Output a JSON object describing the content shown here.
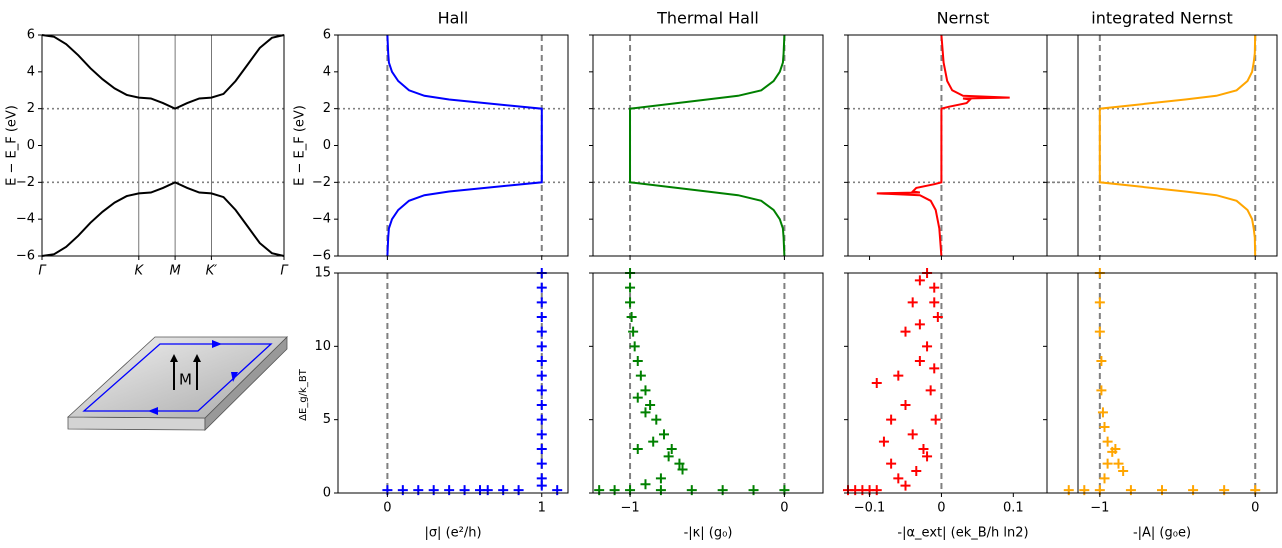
{
  "diagram": {
    "label": "M"
  },
  "chart_data": [
    {
      "type": "line",
      "ylabel": "E − E_F (eV)",
      "x": [
        0,
        0.05,
        0.1,
        0.15,
        0.2,
        0.25,
        0.3,
        0.35,
        0.4,
        0.45,
        0.5,
        0.55,
        0.6,
        0.65,
        0.7,
        0.75,
        0.8,
        0.85,
        0.9,
        0.95,
        1
      ],
      "series": [
        {
          "color": "#000000",
          "values": [
            6,
            5.9,
            5.5,
            4.9,
            4.2,
            3.6,
            3.1,
            2.75,
            2.6,
            2.55,
            2.3,
            2.0,
            2.3,
            2.55,
            2.6,
            2.8,
            3.5,
            4.4,
            5.3,
            5.85,
            6
          ]
        },
        {
          "color": "#000000",
          "values": [
            -6,
            -5.9,
            -5.5,
            -4.9,
            -4.2,
            -3.6,
            -3.1,
            -2.75,
            -2.6,
            -2.55,
            -2.3,
            -2.0,
            -2.3,
            -2.55,
            -2.6,
            -2.8,
            -3.5,
            -4.4,
            -5.3,
            -5.85,
            -6
          ]
        }
      ],
      "xlim": [
        0,
        1
      ],
      "xticks": [
        {
          "value": 0,
          "label": "Γ"
        },
        {
          "value": 0.4,
          "label": "K"
        },
        {
          "value": 0.55,
          "label": "M"
        },
        {
          "value": 0.7,
          "label": "K′"
        },
        {
          "value": 1,
          "label": "Γ"
        }
      ],
      "xgrid": true,
      "ylim": [
        -6,
        6
      ],
      "yticks": [
        {
          "value": -6,
          "label": "−6"
        },
        {
          "value": -4,
          "label": "−4"
        },
        {
          "value": -2,
          "label": "−2"
        },
        0,
        2,
        4,
        6
      ],
      "hlines": [
        2,
        -2
      ]
    },
    {
      "type": "line",
      "title": "Hall",
      "ylabel": "E − E_F (eV)",
      "y": [
        -6,
        -5,
        -4.5,
        -4,
        -3.5,
        -3,
        -2.7,
        -2.5,
        -2,
        2,
        2.5,
        2.7,
        3,
        3.5,
        4,
        4.5,
        5,
        6
      ],
      "series": [
        {
          "color": "#0000ff",
          "values": [
            0,
            0.005,
            0.01,
            0.03,
            0.07,
            0.14,
            0.24,
            0.4,
            1,
            1,
            0.4,
            0.24,
            0.14,
            0.07,
            0.03,
            0.01,
            0.005,
            0
          ]
        }
      ],
      "xlim": [
        -0.32,
        1.17
      ],
      "ylim": [
        -6,
        6
      ],
      "yticks": [
        {
          "value": -6,
          "label": "−6"
        },
        {
          "value": -4,
          "label": "−4"
        },
        {
          "value": -2,
          "label": "−2"
        },
        0,
        2,
        4,
        6
      ],
      "hlines": [
        2,
        -2
      ],
      "vlines": [
        0,
        1
      ]
    },
    {
      "type": "line",
      "title": "Thermal Hall",
      "y": [
        -6,
        -5,
        -4.5,
        -4,
        -3.5,
        -3,
        -2.7,
        -2.5,
        -2,
        2,
        2.5,
        2.7,
        3,
        3.5,
        4,
        4.5,
        5,
        6
      ],
      "series": [
        {
          "color": "#008000",
          "values": [
            0,
            -0.005,
            -0.01,
            -0.03,
            -0.07,
            -0.15,
            -0.3,
            -0.5,
            -1,
            -1,
            -0.5,
            -0.3,
            -0.15,
            -0.07,
            -0.03,
            -0.01,
            -0.005,
            0
          ]
        }
      ],
      "xlim": [
        -1.24,
        0.25
      ],
      "ylim": [
        -6,
        6
      ],
      "hlines": [
        2,
        -2
      ],
      "vlines": [
        -1,
        0
      ]
    },
    {
      "type": "line",
      "title": "Nernst",
      "y": [
        -6,
        -4.5,
        -3.5,
        -3,
        -2.7,
        -2.6,
        -2.55,
        -2.5,
        -2.3,
        -2.1,
        -2,
        2,
        2.1,
        2.3,
        2.5,
        2.55,
        2.6,
        2.7,
        3,
        3.5,
        4.5,
        6
      ],
      "series": [
        {
          "color": "#ff0000",
          "values": [
            0,
            -0.003,
            -0.008,
            -0.015,
            -0.03,
            -0.09,
            -0.03,
            -0.04,
            -0.035,
            -0.01,
            0,
            0,
            0.01,
            0.035,
            0.04,
            0.03,
            0.095,
            0.03,
            0.015,
            0.008,
            0.003,
            0
          ]
        }
      ],
      "xlim": [
        -0.13,
        0.19
      ],
      "ylim": [
        -6,
        6
      ],
      "hlines": [
        2,
        -2
      ],
      "vlines": [
        0
      ]
    },
    {
      "type": "line",
      "title": "integrated Nernst",
      "y": [
        -6,
        -5,
        -4.5,
        -4,
        -3.5,
        -3,
        -2.7,
        -2.5,
        -2,
        2,
        2.5,
        2.7,
        3,
        3.5,
        4,
        4.5,
        5,
        6
      ],
      "series": [
        {
          "color": "#ffa500",
          "values": [
            0,
            -0.003,
            -0.01,
            -0.02,
            -0.05,
            -0.12,
            -0.25,
            -0.45,
            -1,
            -1,
            -0.45,
            -0.25,
            -0.12,
            -0.05,
            -0.02,
            -0.01,
            -0.003,
            0
          ]
        }
      ],
      "xlim": [
        -1.34,
        0.14
      ],
      "ylim": [
        -6,
        6
      ],
      "hlines": [
        2,
        -2
      ],
      "vlines": [
        -1,
        0
      ]
    },
    {
      "type": "scatter",
      "xlabel": "|σ| (e²/h)",
      "ylabel": "ΔE_g/k_BT",
      "color": "#0000ff",
      "x": [
        0,
        0.1,
        0.2,
        0.3,
        0.4,
        0.5,
        0.6,
        0.65,
        0.75,
        0.85,
        1.1,
        1,
        1,
        1,
        1,
        1,
        1,
        1,
        1,
        1,
        1,
        1,
        1,
        1,
        1,
        1,
        1
      ],
      "y": [
        0.2,
        0.2,
        0.2,
        0.2,
        0.2,
        0.2,
        0.2,
        0.2,
        0.2,
        0.2,
        0.2,
        0.5,
        1,
        2,
        3,
        4,
        5,
        6,
        7,
        8,
        9,
        10,
        11,
        12,
        13,
        14,
        15
      ],
      "xlim": [
        -0.32,
        1.17
      ],
      "xticks": [
        0,
        1
      ],
      "ylim": [
        0,
        15
      ],
      "yticks": [
        0,
        5,
        10,
        15
      ],
      "vlines": [
        0,
        1
      ]
    },
    {
      "type": "scatter",
      "xlabel": "-|κ| (g₀)",
      "color": "#008000",
      "x": [
        -1,
        -1,
        -1,
        -0.99,
        -0.98,
        -0.97,
        -0.95,
        -0.93,
        -0.9,
        -0.87,
        -0.83,
        -0.78,
        -0.73,
        -0.68,
        -0.66,
        -0.9,
        -0.95,
        -0.85,
        -0.8,
        -0.9,
        -0.95,
        -0.75,
        -1.2,
        -1.1,
        -1,
        -0.8,
        -0.6,
        -0.4,
        -0.2,
        0
      ],
      "y": [
        15,
        14,
        13,
        12,
        11,
        10,
        9,
        8,
        7,
        6,
        5,
        4,
        3,
        2,
        1.6,
        5.5,
        3,
        3.5,
        1,
        0.6,
        6.5,
        2.5,
        0.2,
        0.2,
        0.2,
        0.2,
        0.2,
        0.2,
        0.2,
        0.2
      ],
      "xlim": [
        -1.24,
        0.25
      ],
      "xticks": [
        {
          "value": -1,
          "label": "−1"
        },
        0
      ],
      "ylim": [
        0,
        15
      ],
      "vlines": [
        -1,
        0
      ]
    },
    {
      "type": "scatter",
      "xlabel": "-|α_ext| (ek_B/h ln2)",
      "color": "#ff0000",
      "x": [
        -0.13,
        -0.12,
        -0.11,
        -0.1,
        -0.09,
        -0.08,
        -0.07,
        -0.06,
        -0.05,
        -0.04,
        -0.03,
        -0.02,
        -0.01,
        -0.005,
        -0.09,
        -0.07,
        -0.05,
        -0.03,
        -0.02,
        -0.01,
        -0.06,
        -0.04,
        -0.025,
        -0.015,
        -0.008,
        -0.05,
        -0.035,
        -0.02,
        -0.01,
        -0.03
      ],
      "y": [
        0.2,
        0.2,
        0.2,
        0.2,
        0.2,
        3.5,
        5,
        8,
        11,
        13,
        14.5,
        15,
        14,
        12,
        7.5,
        2,
        6,
        9,
        10,
        13,
        1,
        4,
        3,
        7,
        5,
        0.5,
        1.5,
        2.5,
        8.5,
        11.5
      ],
      "xlim": [
        -0.13,
        0.19
      ],
      "xticks": [
        {
          "value": -0.1,
          "label": "−0.1"
        },
        0,
        0.1
      ],
      "ylim": [
        0,
        15
      ],
      "vlines": [
        0
      ]
    },
    {
      "type": "scatter",
      "xlabel": "-|A| (g₀e)",
      "color": "#ffa500",
      "x": [
        -1,
        -1,
        -1,
        -0.99,
        -0.99,
        -0.98,
        -0.97,
        -0.95,
        -0.92,
        -0.88,
        -0.85,
        -0.95,
        -0.97,
        -0.9,
        -1.2,
        -1.1,
        -1,
        -0.8,
        -0.6,
        -0.4,
        -0.2,
        0
      ],
      "y": [
        15,
        13,
        11,
        9,
        7,
        5.5,
        4.5,
        3.5,
        2.8,
        2,
        1.5,
        2,
        1,
        3,
        0.2,
        0.2,
        0.2,
        0.2,
        0.2,
        0.2,
        0.2,
        0.2
      ],
      "xlim": [
        -1.34,
        0.14
      ],
      "xticks": [
        {
          "value": -1,
          "label": "−1"
        },
        0
      ],
      "ylim": [
        0,
        15
      ],
      "vlines": [
        -1,
        0
      ]
    }
  ]
}
